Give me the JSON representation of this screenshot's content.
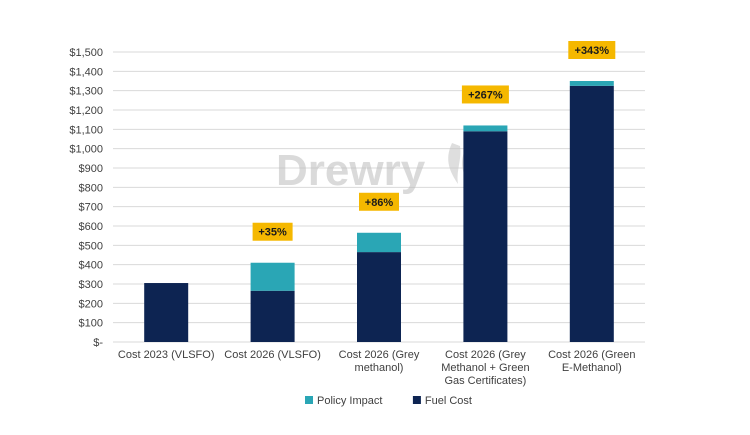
{
  "chart_data": {
    "type": "bar",
    "stacked": true,
    "categories": [
      [
        "Cost 2023 (VLSFO)"
      ],
      [
        "Cost 2026 (VLSFO)"
      ],
      [
        "Cost 2026 (Grey",
        "methanol)"
      ],
      [
        "Cost 2026 (Grey",
        "Methanol + Green",
        "Gas Certificates)"
      ],
      [
        "Cost 2026 (Green",
        "E-Methanol)"
      ]
    ],
    "series": [
      {
        "name": "Fuel Cost",
        "color": "#0d2452",
        "values": [
          305,
          265,
          465,
          1090,
          1325
        ]
      },
      {
        "name": "Policy Impact",
        "color": "#2aa6b5",
        "values": [
          0,
          145,
          100,
          30,
          25
        ]
      }
    ],
    "annotations": [
      "",
      "+35%",
      "+86%",
      "+267%",
      "+343%"
    ],
    "annotation_color": "#f5b800",
    "ylim": [
      0,
      1500
    ],
    "ytick_step": 100,
    "ytick_labels": [
      "$-",
      "$100",
      "$200",
      "$300",
      "$400",
      "$500",
      "$600",
      "$700",
      "$800",
      "$900",
      "$1,000",
      "$1,100",
      "$1,200",
      "$1,300",
      "$1,400",
      "$1,500"
    ],
    "grid": true,
    "legend_position": "bottom",
    "legend": [
      "Policy Impact",
      "Fuel Cost"
    ],
    "watermark": "Drewry"
  }
}
